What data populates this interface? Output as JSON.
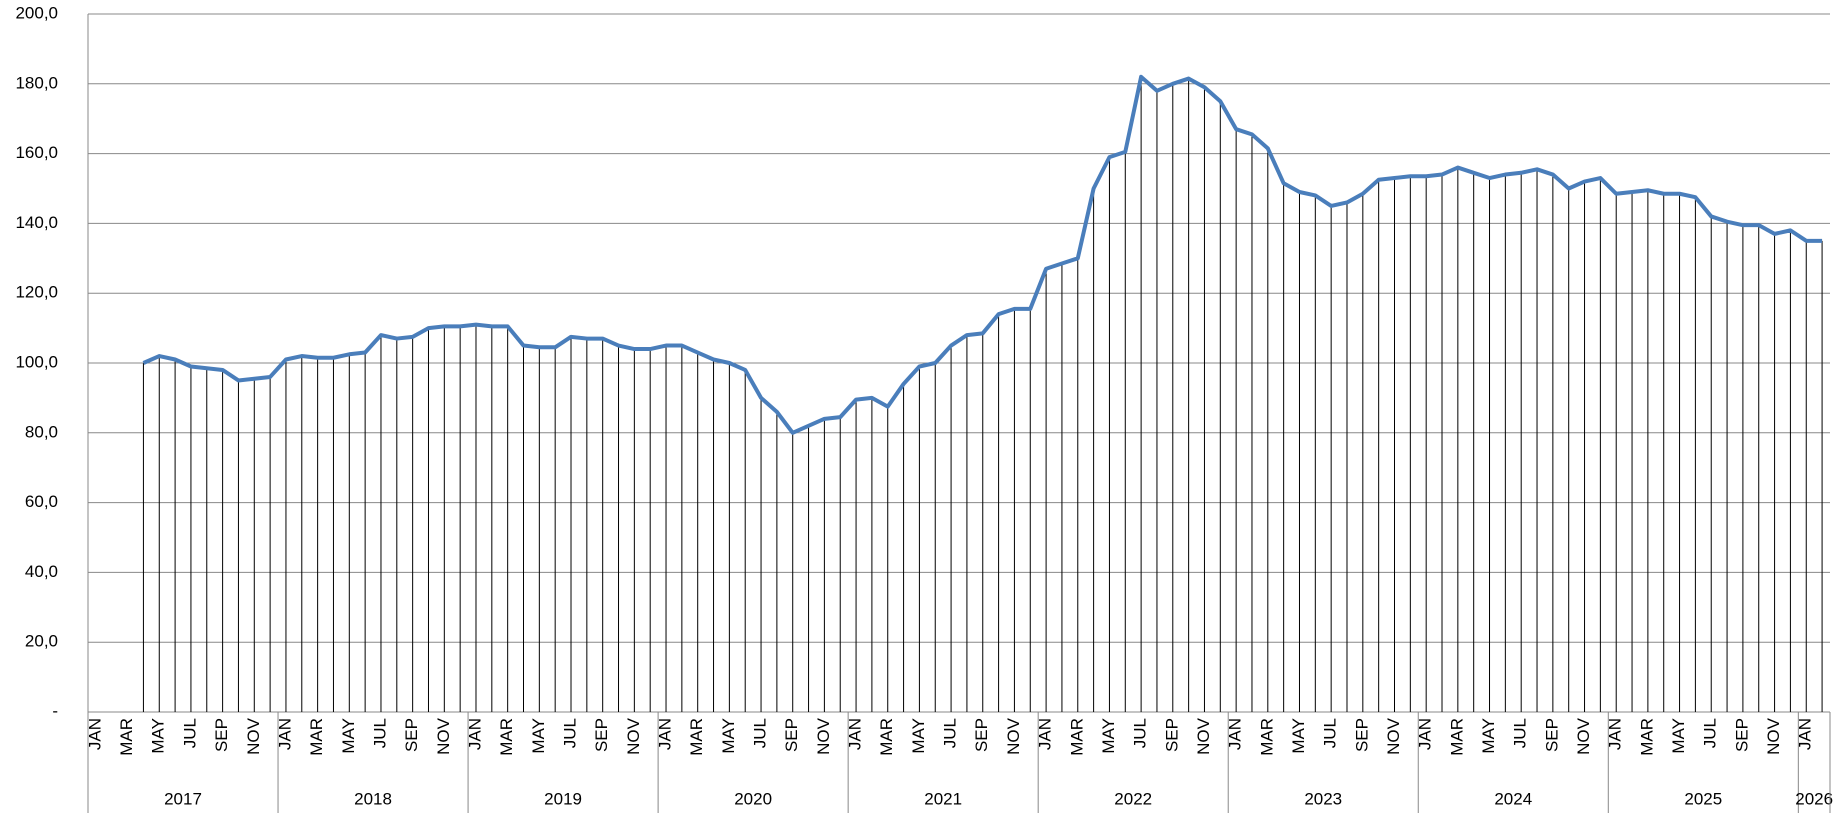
{
  "chart_data": {
    "type": "line",
    "categories": [
      "JAN",
      null,
      "MAR",
      null,
      "MAY",
      null,
      "JUL",
      null,
      "SEP",
      null,
      "NOV",
      null,
      "JAN",
      null,
      "MAR",
      null,
      "MAY",
      null,
      "JUL",
      null,
      "SEP",
      null,
      "NOV",
      null,
      "JAN",
      null,
      "MAR",
      null,
      "MAY",
      null,
      "JUL",
      null,
      "SEP",
      null,
      "NOV",
      null,
      "JAN",
      null,
      "MAR",
      null,
      "MAY",
      null,
      "JUL",
      null,
      "SEP",
      null,
      "NOV",
      null,
      "JAN",
      null,
      "MAR",
      null,
      "MAY",
      null,
      "JUL",
      null,
      "SEP",
      null,
      "NOV",
      null,
      "JAN",
      null,
      "MAR",
      null,
      "MAY",
      null,
      "JUL",
      null,
      "SEP",
      null,
      "NOV",
      null,
      "JAN",
      null,
      "MAR",
      null,
      "MAY",
      null,
      "JUL",
      null,
      "SEP",
      null,
      "NOV",
      null,
      "JAN",
      null,
      "MAR",
      null,
      "MAY",
      null,
      "JUL",
      null,
      "SEP",
      null,
      "NOV",
      null,
      "JAN",
      null,
      "MAR",
      null,
      "MAY",
      null,
      "JUL",
      null,
      "SEP",
      null,
      "NOV",
      null,
      "JAN",
      null
    ],
    "years": [
      "2017",
      "2018",
      "2019",
      "2020",
      "2021",
      "2022",
      "2023",
      "2024",
      "2025",
      "2026"
    ],
    "values": [
      null,
      null,
      null,
      100,
      102,
      101,
      99,
      98.5,
      98,
      95,
      95.5,
      96,
      101,
      102,
      101.5,
      101.5,
      102.5,
      103,
      108,
      107,
      107.5,
      110,
      110.5,
      110.5,
      111,
      110.5,
      110.5,
      105,
      104.5,
      104.5,
      107.5,
      107,
      107,
      105,
      104,
      104,
      105,
      105,
      103,
      101,
      100,
      98,
      90,
      86,
      80,
      82,
      84,
      84.5,
      89.5,
      90,
      87.5,
      94,
      99,
      100,
      105,
      108,
      108.5,
      114,
      115.5,
      115.5,
      127,
      128.5,
      130,
      150,
      159,
      160.5,
      182,
      178,
      180,
      181.5,
      179,
      175,
      167,
      165.5,
      161.5,
      151.5,
      149,
      148,
      145,
      146,
      148.5,
      152.5,
      153,
      153.5,
      153.5,
      154,
      156,
      154.5,
      153,
      154,
      154.5,
      155.5,
      154,
      150,
      152,
      153,
      148.5,
      149,
      149.5,
      148.5,
      148.5,
      147.5,
      142,
      140.5,
      139.5,
      139.5,
      137,
      138,
      135,
      135
    ],
    "color": "#4a7ebb",
    "drop_lines": true,
    "ylim": [
      0,
      200
    ],
    "yticks": [
      {
        "value": 0,
        "label": "-"
      },
      {
        "value": 20,
        "label": "20,0"
      },
      {
        "value": 40,
        "label": "40,0"
      },
      {
        "value": 60,
        "label": "60,0"
      },
      {
        "value": 80,
        "label": "80,0"
      },
      {
        "value": 100,
        "label": "100,0"
      },
      {
        "value": 120,
        "label": "120,0"
      },
      {
        "value": 140,
        "label": "140,0"
      },
      {
        "value": 160,
        "label": "160,0"
      },
      {
        "value": 180,
        "label": "180,0"
      },
      {
        "value": 200,
        "label": "200,0"
      }
    ],
    "grid": true
  }
}
